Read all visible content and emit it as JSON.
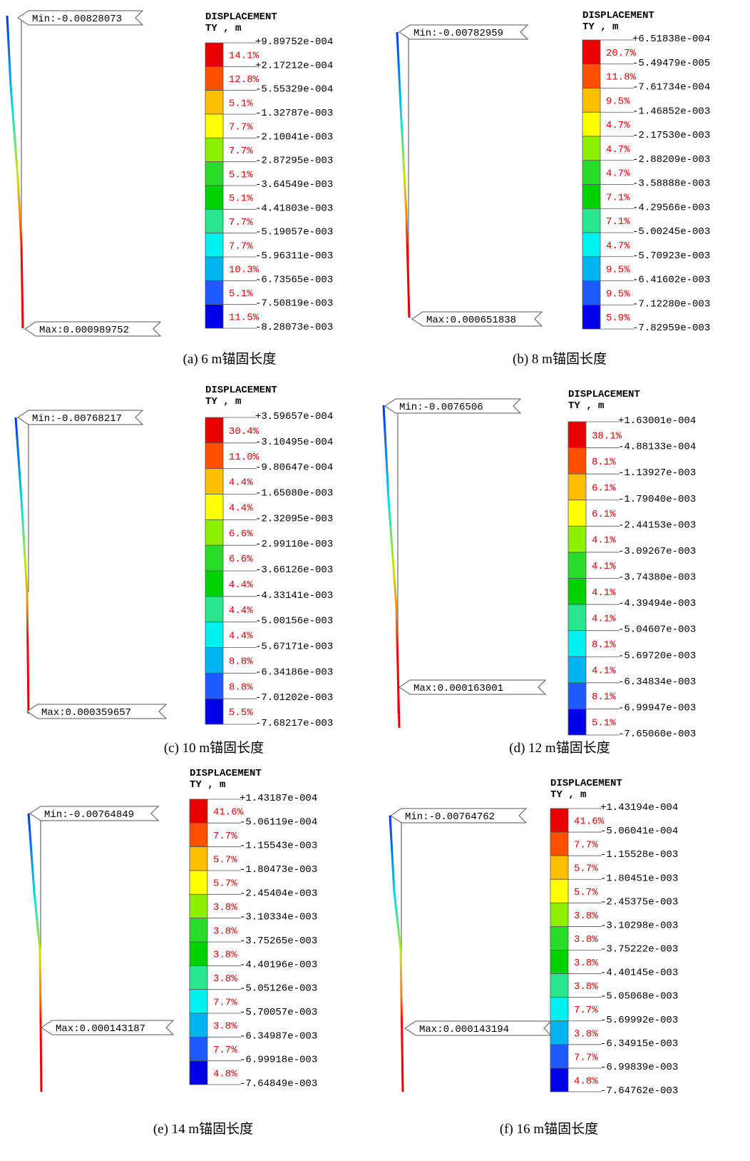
{
  "panels": [
    {
      "title": "DISPLACEMENT",
      "subtitle": "TY , m",
      "min_label": "Min:-0.00828073",
      "max_label": "Max:0.000989752",
      "levels": [
        "+9.89752e-004",
        "+2.17212e-004",
        "-5.55329e-004",
        "-1.32787e-003",
        "-2.10041e-003",
        "-2.87295e-003",
        "-3.64549e-003",
        "-4.41803e-003",
        "-5.19057e-003",
        "-5.96311e-003",
        "-6.73565e-003",
        "-7.50819e-003",
        "-8.28073e-003"
      ],
      "percents": [
        "14.1%",
        "12.8%",
        "5.1%",
        "7.7%",
        "7.7%",
        "5.1%",
        "5.1%",
        "7.7%",
        "7.7%",
        "10.3%",
        "5.1%",
        "11.5%"
      ],
      "caption": "(a) 6 m锚固长度"
    },
    {
      "title": "DISPLACEMENT",
      "subtitle": "TY , m",
      "min_label": "Min:-0.00782959",
      "max_label": "Max:0.000651838",
      "levels": [
        "+6.51838e-004",
        "-5.49479e-005",
        "-7.61734e-004",
        "-1.46852e-003",
        "-2.17530e-003",
        "-2.88209e-003",
        "-3.58888e-003",
        "-4.29566e-003",
        "-5.00245e-003",
        "-5.70923e-003",
        "-6.41602e-003",
        "-7.12280e-003",
        "-7.82959e-003"
      ],
      "percents": [
        "20.7%",
        "11.8%",
        "9.5%",
        "4.7%",
        "4.7%",
        "4.7%",
        "7.1%",
        "7.1%",
        "4.7%",
        "9.5%",
        "9.5%",
        "5.9%"
      ],
      "caption": "(b)  8 m锚固长度"
    },
    {
      "title": "DISPLACEMENT",
      "subtitle": "TY , m",
      "min_label": "Min:-0.00768217",
      "max_label": "Max:0.000359657",
      "levels": [
        "+3.59657e-004",
        "-3.10495e-004",
        "-9.80647e-004",
        "-1.65080e-003",
        "-2.32095e-003",
        "-2.99110e-003",
        "-3.66126e-003",
        "-4.33141e-003",
        "-5.00156e-003",
        "-5.67171e-003",
        "-6.34186e-003",
        "-7.01202e-003",
        "-7.68217e-003"
      ],
      "percents": [
        "30.4%",
        "11.0%",
        "4.4%",
        "4.4%",
        "6.6%",
        "6.6%",
        "4.4%",
        "4.4%",
        "4.4%",
        "8.8%",
        "8.8%",
        "5.5%"
      ],
      "caption": "(c) 10 m锚固长度"
    },
    {
      "title": "DISPLACEMENT",
      "subtitle": "TY , m",
      "min_label": "Min:-0.0076506",
      "max_label": "Max:0.000163001",
      "levels": [
        "+1.63001e-004",
        "-4.88133e-004",
        "-1.13927e-003",
        "-1.79040e-003",
        "-2.44153e-003",
        "-3.09267e-003",
        "-3.74380e-003",
        "-4.39494e-003",
        "-5.04607e-003",
        "-5.69720e-003",
        "-6.34834e-003",
        "-6.99947e-003",
        "-7.65060e-003"
      ],
      "percents": [
        "38.1%",
        "8.1%",
        "6.1%",
        "6.1%",
        "4.1%",
        "4.1%",
        "4.1%",
        "4.1%",
        "8.1%",
        "4.1%",
        "8.1%",
        "5.1%"
      ],
      "caption": "(d) 12 m锚固长度"
    },
    {
      "title": "DISPLACEMENT",
      "subtitle": "TY , m",
      "min_label": "Min:-0.00764849",
      "max_label": "Max:0.000143187",
      "levels": [
        "+1.43187e-004",
        "-5.06119e-004",
        "-1.15543e-003",
        "-1.80473e-003",
        "-2.45404e-003",
        "-3.10334e-003",
        "-3.75265e-003",
        "-4.40196e-003",
        "-5.05126e-003",
        "-5.70057e-003",
        "-6.34987e-003",
        "-6.99918e-003",
        "-7.64849e-003"
      ],
      "percents": [
        "41.6%",
        "7.7%",
        "5.7%",
        "5.7%",
        "3.8%",
        "3.8%",
        "3.8%",
        "3.8%",
        "7.7%",
        "3.8%",
        "7.7%",
        "4.8%"
      ],
      "caption": "(e)  14 m锚固长度"
    },
    {
      "title": "DISPLACEMENT",
      "subtitle": "TY , m",
      "min_label": "Min:-0.00764762",
      "max_label": "Max:0.000143194",
      "levels": [
        "+1.43194e-004",
        "-5.06041e-004",
        "-1.15528e-003",
        "-1.80451e-003",
        "-2.45375e-003",
        "-3.10298e-003",
        "-3.75222e-003",
        "-4.40145e-003",
        "-5.05068e-003",
        "-5.69992e-003",
        "-6.34915e-003",
        "-6.99839e-003",
        "-7.64762e-003"
      ],
      "percents": [
        "41.6%",
        "7.7%",
        "5.7%",
        "5.7%",
        "3.8%",
        "3.8%",
        "3.8%",
        "3.8%",
        "7.7%",
        "3.8%",
        "7.7%",
        "4.8%"
      ],
      "caption": "(f) 16 m锚固长度"
    }
  ]
}
